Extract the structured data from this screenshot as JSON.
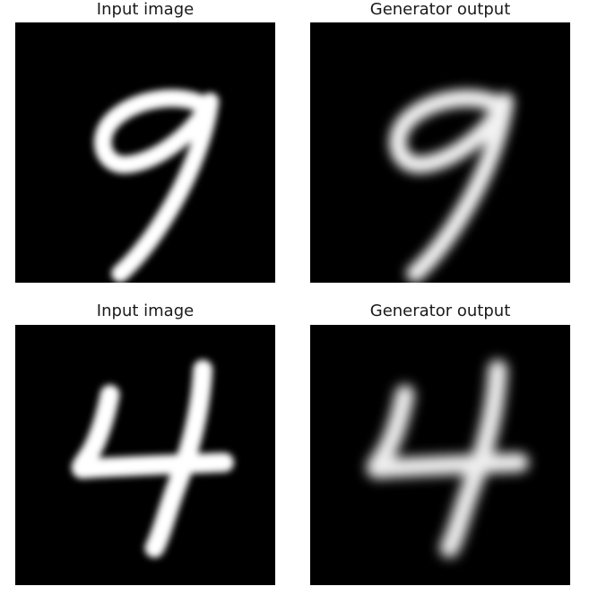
{
  "panels": [
    {
      "title": "Input image",
      "digit": "9",
      "variant": "sharp"
    },
    {
      "title": "Generator output",
      "digit": "9",
      "variant": "blurred"
    },
    {
      "title": "Input image",
      "digit": "4",
      "variant": "sharp"
    },
    {
      "title": "Generator output",
      "digit": "4",
      "variant": "blurred"
    }
  ],
  "colors": {
    "background": "#000000",
    "stroke": "#ffffff"
  }
}
